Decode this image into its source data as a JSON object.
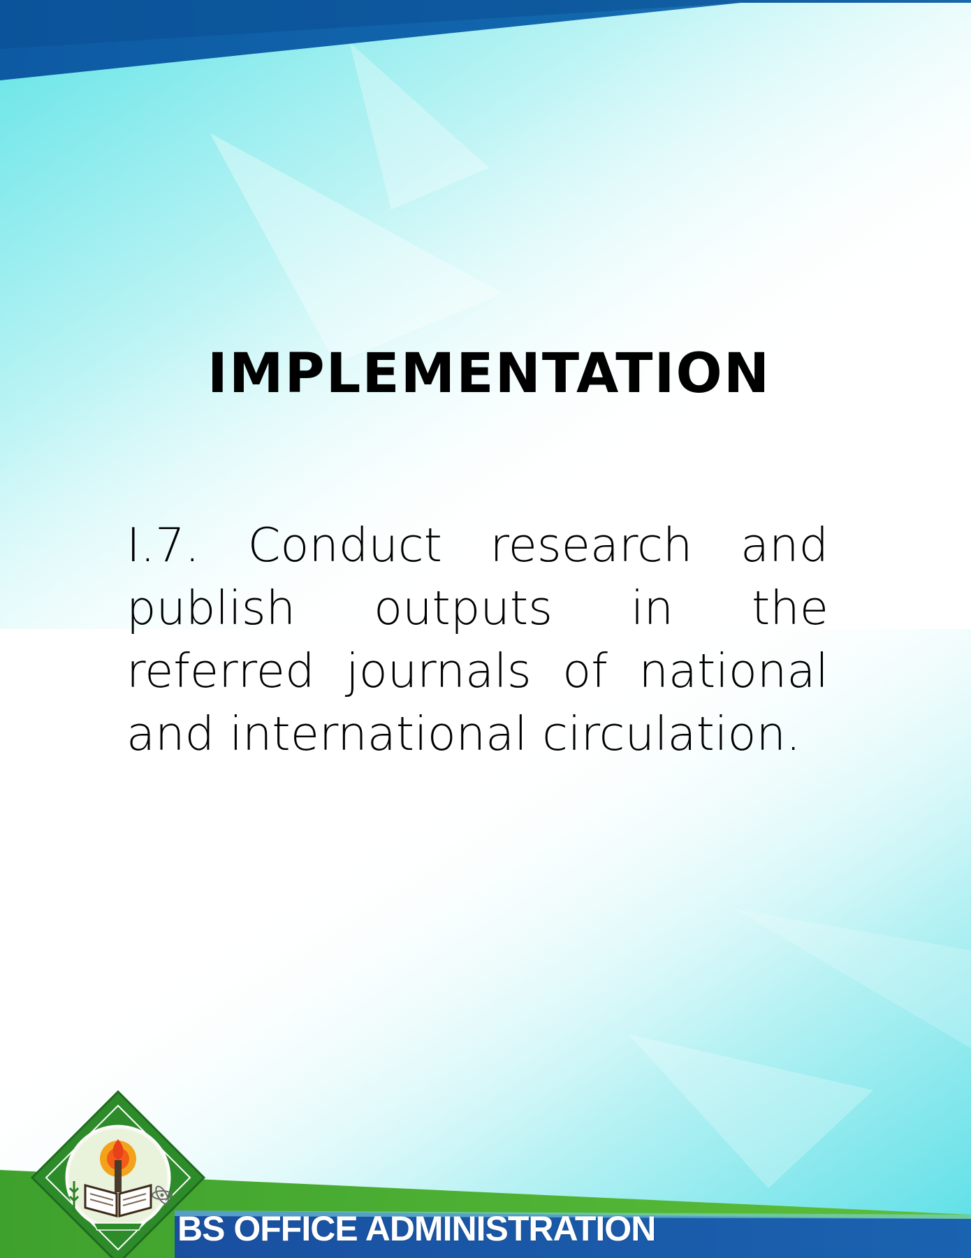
{
  "document": {
    "heading": "IMPLEMENTATION",
    "body": "I.7. Conduct research and publish outputs in the referred journals of national and international circulation."
  },
  "footer": {
    "program": "BS OFFICE ADMINISTRATION",
    "seal_icon": "university-seal-icon"
  },
  "colors": {
    "top_band": "#0b5fa8",
    "cyan_accent": "#5fe0e8",
    "footer_green": "#3d9a2a",
    "footer_blue": "#1656a8"
  }
}
